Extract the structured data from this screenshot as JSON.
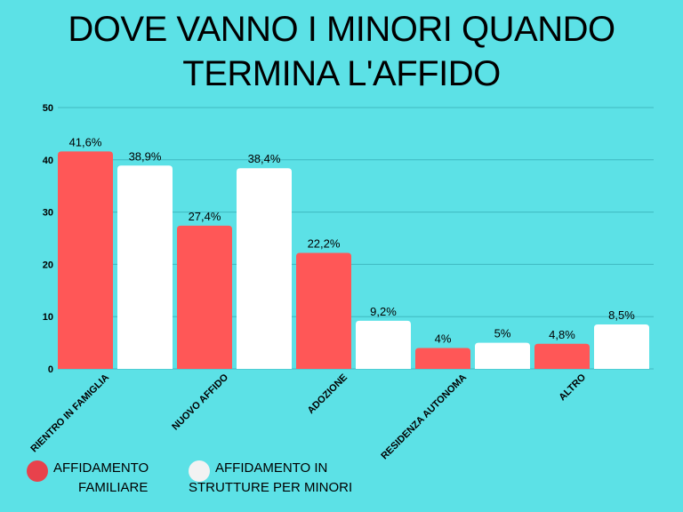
{
  "chart_data": {
    "type": "bar",
    "title": "DOVE VANNO I MINORI QUANDO TERMINA L'AFFIDO",
    "title_lines": [
      "DOVE VANNO I MINORI QUANDO",
      "TERMINA L'AFFIDO"
    ],
    "categories": [
      "RIENTRO IN FAMIGLIA",
      "NUOVO AFFIDO",
      "ADOZIONE",
      "RESIDENZA AUTONOMA",
      "ALTRO"
    ],
    "series": [
      {
        "name": "AFFIDAMENTO FAMILIARE",
        "name_lines": [
          "AFFIDAMENTO",
          "FAMILIARE"
        ],
        "color": "#ff5757",
        "values": [
          41.6,
          27.4,
          22.2,
          4,
          4.8
        ],
        "labels": [
          "41,6%",
          "27,4%",
          "22,2%",
          "4%",
          "4,8%"
        ]
      },
      {
        "name": "AFFIDAMENTO IN STRUTTURE PER MINORI",
        "name_lines": [
          "AFFIDAMENTO IN",
          "STRUTTURE PER MINORI"
        ],
        "color": "#ffffff",
        "values": [
          38.9,
          38.4,
          9.2,
          5,
          8.5
        ],
        "labels": [
          "38,9%",
          "38,4%",
          "9,2%",
          "5%",
          "8,5%"
        ]
      }
    ],
    "ylim": [
      0,
      50
    ],
    "yticks": [
      0,
      10,
      20,
      30,
      40,
      50
    ],
    "grid": true,
    "legend_position": "bottom-left",
    "background": "#5ce1e6",
    "grid_color": "#3fb9c0"
  }
}
